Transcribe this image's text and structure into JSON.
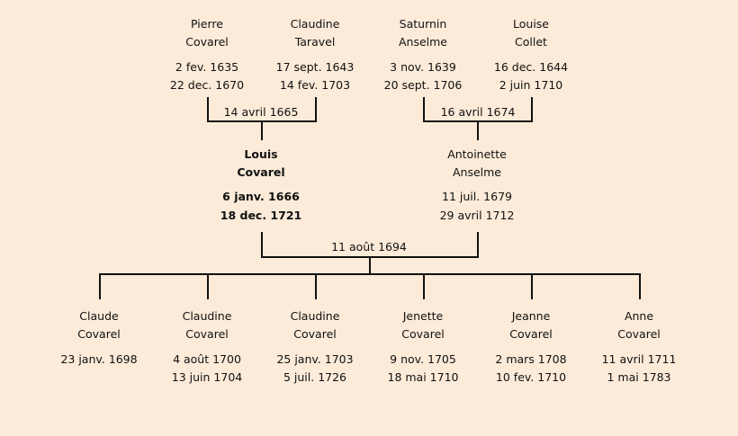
{
  "grandparents": [
    {
      "first": "Pierre",
      "last": "Covarel",
      "birth": "2 fev. 1635",
      "death": "22 dec. 1670"
    },
    {
      "first": "Claudine",
      "last": "Taravel",
      "birth": "17 sept. 1643",
      "death": "14 fev. 1703"
    },
    {
      "first": "Saturnin",
      "last": "Anselme",
      "birth": "3 nov. 1639",
      "death": "20 sept. 1706"
    },
    {
      "first": "Louise",
      "last": "Collet",
      "birth": "16 dec. 1644",
      "death": "2 juin 1710"
    }
  ],
  "grandparent_marriages": [
    "14 avril 1665",
    "16 avril 1674"
  ],
  "parents": [
    {
      "first": "Louis",
      "last": "Covarel",
      "birth": "6 janv. 1666",
      "death": "18 dec. 1721",
      "highlighted": true
    },
    {
      "first": "Antoinette",
      "last": "Anselme",
      "birth": "11 juil. 1679",
      "death": "29 avril 1712"
    }
  ],
  "parent_marriage": "11 août 1694",
  "children": [
    {
      "first": "Claude",
      "last": "Covarel",
      "birth": "23 janv. 1698",
      "death": ""
    },
    {
      "first": "Claudine",
      "last": "Covarel",
      "birth": "4 août 1700",
      "death": "13 juin 1704"
    },
    {
      "first": "Claudine",
      "last": "Covarel",
      "birth": "25 janv. 1703",
      "death": "5 juil. 1726"
    },
    {
      "first": "Jenette",
      "last": "Covarel",
      "birth": "9 nov. 1705",
      "death": "18 mai 1710"
    },
    {
      "first": "Jeanne",
      "last": "Covarel",
      "birth": "2 mars 1708",
      "death": "10 fev. 1710"
    },
    {
      "first": "Anne",
      "last": "Covarel",
      "birth": "11 avril 1711",
      "death": "1 mai 1783"
    }
  ],
  "colors": {
    "background": "#fcebd9",
    "line": "#111111"
  }
}
